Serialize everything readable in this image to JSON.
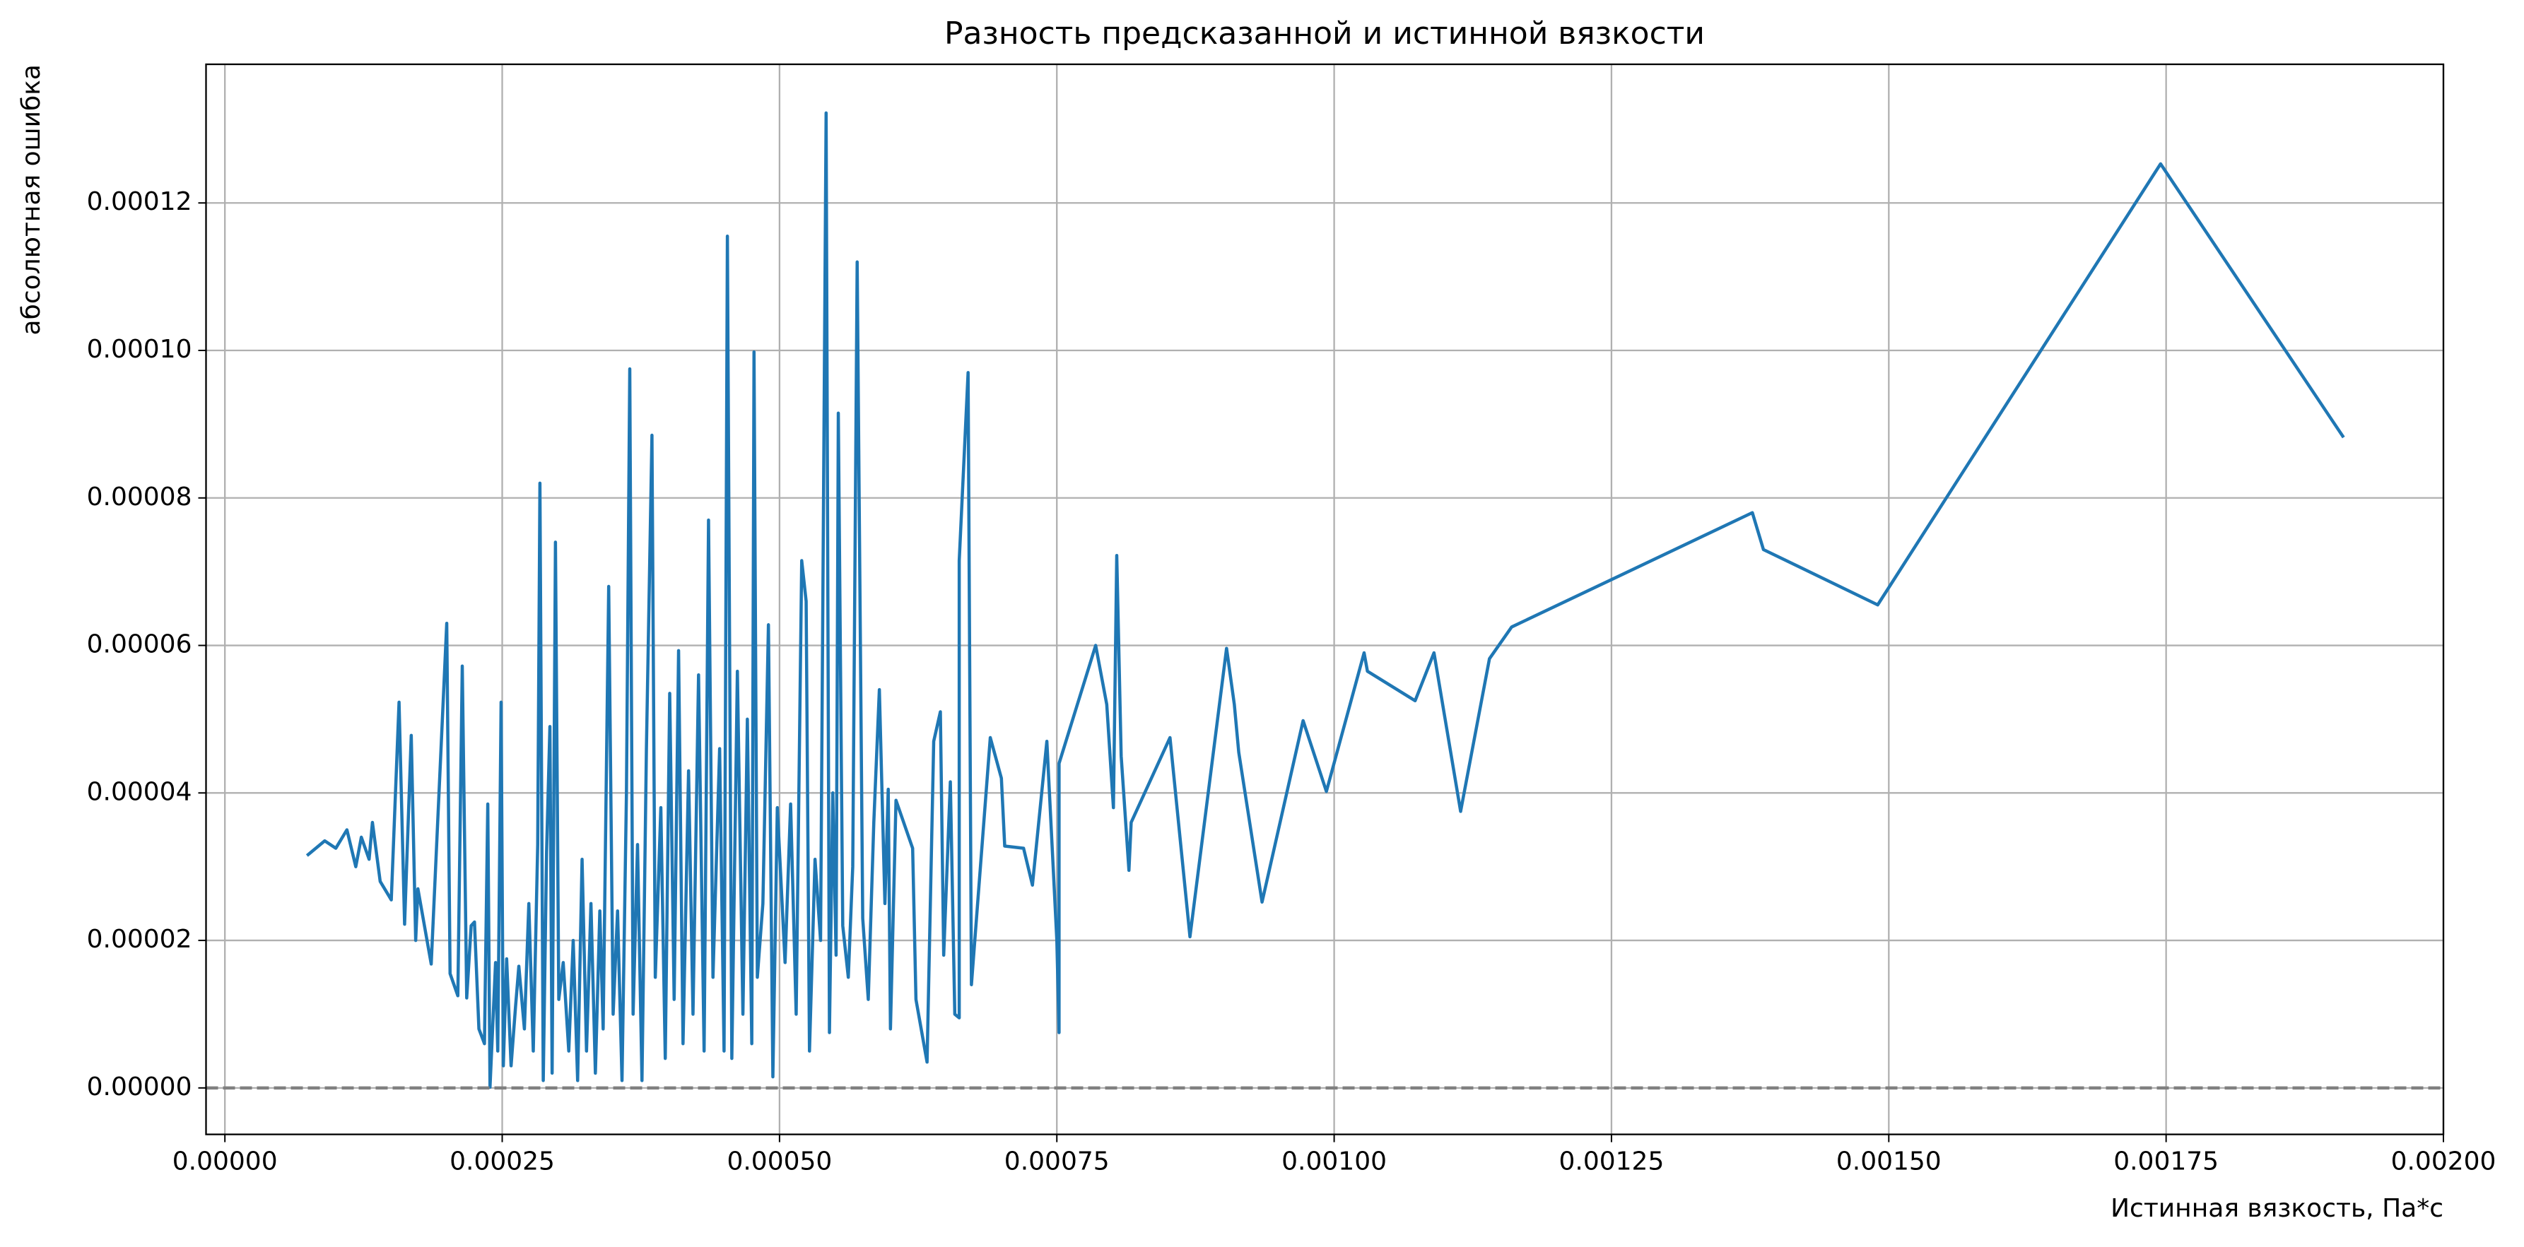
{
  "chart_data": {
    "type": "line",
    "title": "Разность предсказанной и истинной вязкости",
    "xlabel": "Истинная вязкость, Па*с",
    "ylabel": "абсолютная ошибка",
    "x": [
      7.4e-05,
      9e-05,
      0.0001,
      0.00011,
      0.000118,
      0.000123,
      0.00013,
      0.000133,
      0.00014,
      0.00015,
      0.000157,
      0.000162,
      0.000168,
      0.000172,
      0.000174,
      0.000186,
      0.0002,
      0.000203,
      0.00021,
      0.000214,
      0.000218,
      0.000222,
      0.000225,
      0.000229,
      0.000234,
      0.000237,
      0.000239,
      0.000244,
      0.000246,
      0.000249,
      0.000251,
      0.000254,
      0.000258,
      0.000262,
      0.000265,
      0.00027,
      0.000274,
      0.000278,
      0.000282,
      0.000284,
      0.000287,
      0.00029,
      0.000293,
      0.000295,
      0.000298,
      0.000301,
      0.000305,
      0.00031,
      0.000314,
      0.000318,
      0.000322,
      0.000326,
      0.00033,
      0.000334,
      0.000338,
      0.000341,
      0.000346,
      0.00035,
      0.000354,
      0.000358,
      0.000362,
      0.000365,
      0.000368,
      0.000372,
      0.000376,
      0.00038,
      0.000385,
      0.000388,
      0.000393,
      0.000397,
      0.000401,
      0.000405,
      0.000409,
      0.000413,
      0.000418,
      0.000422,
      0.000427,
      0.000432,
      0.000436,
      0.00044,
      0.000446,
      0.00045,
      0.000453,
      0.000457,
      0.000462,
      0.000467,
      0.000471,
      0.000475,
      0.000477,
      0.00048,
      0.000485,
      0.00049,
      0.000494,
      0.000498,
      0.000505,
      0.00051,
      0.000515,
      0.00052,
      0.000524,
      0.000527,
      0.000532,
      0.000537,
      0.000542,
      0.000545,
      0.000548,
      0.000551,
      0.000553,
      0.000557,
      0.000562,
      0.000566,
      0.00057,
      0.000575,
      0.00058,
      0.000585,
      0.00059,
      0.000595,
      0.000598,
      0.0006,
      0.000605,
      0.00062,
      0.000623,
      0.000633,
      0.000639,
      0.000645,
      0.000648,
      0.000654,
      0.000658,
      0.000662,
      0.000662,
      0.00067,
      0.000673,
      0.00069,
      0.0007,
      0.000703,
      0.00072,
      0.000728,
      0.000741,
      0.00075,
      0.000752,
      0.000752,
      0.000785,
      0.000795,
      0.000801,
      0.000804,
      0.000808,
      0.000815,
      0.000817,
      0.000852,
      0.00087,
      0.000903,
      0.00091,
      0.000914,
      0.000935,
      0.000972,
      0.000993,
      0.001027,
      0.00103,
      0.001073,
      0.00109,
      0.001114,
      0.00114,
      0.00116,
      0.001377,
      0.001387,
      0.00149,
      0.001745,
      0.00191
    ],
    "series": [
      {
        "color": "#1f77b4",
        "values": [
          3.15e-05,
          3.35e-05,
          3.25e-05,
          3.5e-05,
          3e-05,
          3.4e-05,
          3.1e-05,
          3.6e-05,
          2.8e-05,
          2.55e-05,
          5.23e-05,
          2.22e-05,
          4.78e-05,
          2e-05,
          2.7e-05,
          1.68e-05,
          6.3e-05,
          1.55e-05,
          1.25e-05,
          5.72e-05,
          1.22e-05,
          2.2e-05,
          2.25e-05,
          8e-06,
          6e-06,
          3.85e-05,
          1e-07,
          1.7e-05,
          5e-06,
          5.23e-05,
          3e-06,
          1.75e-05,
          3e-06,
          1.1e-05,
          1.65e-05,
          8e-06,
          2.5e-05,
          5e-06,
          3.3e-05,
          8.2e-05,
          1e-06,
          3.2e-05,
          4.9e-05,
          2e-06,
          7.4e-05,
          1.2e-05,
          1.7e-05,
          5e-06,
          2e-05,
          1e-06,
          3.1e-05,
          5e-06,
          2.5e-05,
          2e-06,
          2.4e-05,
          8e-06,
          6.8e-05,
          1e-05,
          2.4e-05,
          1e-06,
          4e-05,
          9.75e-05,
          1e-05,
          3.3e-05,
          1e-06,
          4.6e-05,
          8.85e-05,
          1.5e-05,
          3.8e-05,
          4e-06,
          5.35e-05,
          1.2e-05,
          5.93e-05,
          6e-06,
          4.3e-05,
          1e-05,
          5.6e-05,
          5e-06,
          7.7e-05,
          1.5e-05,
          4.6e-05,
          5e-06,
          0.0001155,
          4e-06,
          5.65e-05,
          1e-05,
          5e-05,
          6e-06,
          9.98e-05,
          1.5e-05,
          2.5e-05,
          6.28e-05,
          1.5e-06,
          3.8e-05,
          1.7e-05,
          3.85e-05,
          1e-05,
          7.15e-05,
          6.6e-05,
          5e-06,
          3.1e-05,
          2e-05,
          0.0001322,
          7.5e-06,
          4e-05,
          1.8e-05,
          9.15e-05,
          2.2e-05,
          1.5e-05,
          3e-05,
          0.000112,
          2.3e-05,
          1.2e-05,
          3.6e-05,
          5.4e-05,
          2.5e-05,
          4.05e-05,
          8e-06,
          3.9e-05,
          3.25e-05,
          1.2e-05,
          3.5e-06,
          4.7e-05,
          5.1e-05,
          1.8e-05,
          4.15e-05,
          1e-05,
          9.5e-06,
          7.15e-05,
          9.7e-05,
          1.4e-05,
          4.75e-05,
          4.2e-05,
          3.28e-05,
          3.25e-05,
          2.75e-05,
          4.7e-05,
          2e-05,
          7.5e-06,
          4.4e-05,
          6e-05,
          5.2e-05,
          3.8e-05,
          7.22e-05,
          4.5e-05,
          2.95e-05,
          3.6e-05,
          4.75e-05,
          2.05e-05,
          5.96e-05,
          5.2e-05,
          4.55e-05,
          2.52e-05,
          4.98e-05,
          4.02e-05,
          5.9e-05,
          5.65e-05,
          5.25e-05,
          5.9e-05,
          3.75e-05,
          5.82e-05,
          6.25e-05,
          7.8e-05,
          7.3e-05,
          6.55e-05,
          0.0001253,
          8.82e-05
        ]
      }
    ],
    "xlim": [
      -1.7e-05,
      0.002
    ],
    "ylim": [
      -6.3e-06,
      0.0001388
    ],
    "xticks": [
      {
        "value": 0,
        "label": "0.00000"
      },
      {
        "value": 0.00025,
        "label": "0.00025"
      },
      {
        "value": 0.0005,
        "label": "0.00050"
      },
      {
        "value": 0.00075,
        "label": "0.00075"
      },
      {
        "value": 0.001,
        "label": "0.00100"
      },
      {
        "value": 0.00125,
        "label": "0.00125"
      },
      {
        "value": 0.0015,
        "label": "0.00150"
      },
      {
        "value": 0.00175,
        "label": "0.00175"
      },
      {
        "value": 0.002,
        "label": "0.00200"
      }
    ],
    "yticks": [
      {
        "value": 0,
        "label": "0.00000"
      },
      {
        "value": 2e-05,
        "label": "0.00002"
      },
      {
        "value": 4e-05,
        "label": "0.00004"
      },
      {
        "value": 6e-05,
        "label": "0.00006"
      },
      {
        "value": 8e-05,
        "label": "0.00008"
      },
      {
        "value": 0.0001,
        "label": "0.00010"
      },
      {
        "value": 0.00012,
        "label": "0.00012"
      }
    ],
    "grid": true,
    "hline": 0,
    "hline_color": "#808080"
  }
}
